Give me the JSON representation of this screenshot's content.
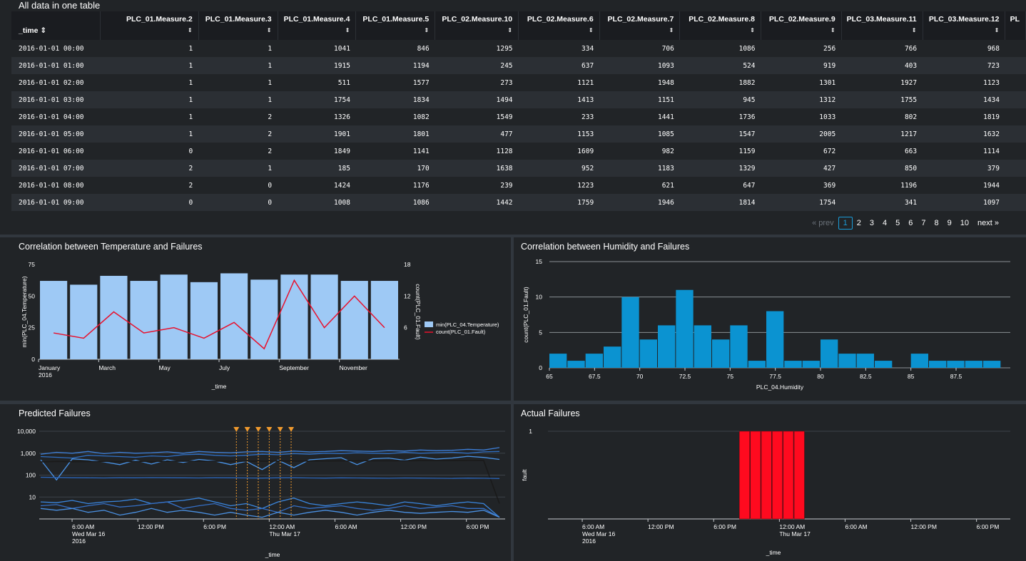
{
  "table": {
    "title": "All data in one table",
    "time_header": "_time",
    "sort_glyph": "⇕",
    "columns": [
      "PLC_01.Measure.2",
      "PLC_01.Measure.3",
      "PLC_01.Measure.4",
      "PLC_01.Measure.5",
      "PLC_02.Measure.10",
      "PLC_02.Measure.6",
      "PLC_02.Measure.7",
      "PLC_02.Measure.8",
      "PLC_02.Measure.9",
      "PLC_03.Measure.11",
      "PLC_03.Measure.12",
      "PL"
    ],
    "rows": [
      {
        "time": "2016-01-01 00:00",
        "values": [
          "1",
          "1",
          "1041",
          "846",
          "1295",
          "334",
          "706",
          "1086",
          "256",
          "766",
          "968"
        ]
      },
      {
        "time": "2016-01-01 01:00",
        "values": [
          "1",
          "1",
          "1915",
          "1194",
          "245",
          "637",
          "1093",
          "524",
          "919",
          "403",
          "723"
        ]
      },
      {
        "time": "2016-01-01 02:00",
        "values": [
          "1",
          "1",
          "511",
          "1577",
          "273",
          "1121",
          "1948",
          "1882",
          "1301",
          "1927",
          "1123"
        ]
      },
      {
        "time": "2016-01-01 03:00",
        "values": [
          "1",
          "1",
          "1754",
          "1834",
          "1494",
          "1413",
          "1151",
          "945",
          "1312",
          "1755",
          "1434"
        ]
      },
      {
        "time": "2016-01-01 04:00",
        "values": [
          "1",
          "2",
          "1326",
          "1082",
          "1549",
          "233",
          "1441",
          "1736",
          "1033",
          "802",
          "1819"
        ]
      },
      {
        "time": "2016-01-01 05:00",
        "values": [
          "1",
          "2",
          "1901",
          "1801",
          "477",
          "1153",
          "1085",
          "1547",
          "2005",
          "1217",
          "1632"
        ]
      },
      {
        "time": "2016-01-01 06:00",
        "values": [
          "0",
          "2",
          "1849",
          "1141",
          "1128",
          "1609",
          "982",
          "1159",
          "672",
          "663",
          "1114"
        ]
      },
      {
        "time": "2016-01-01 07:00",
        "values": [
          "2",
          "1",
          "185",
          "170",
          "1638",
          "952",
          "1183",
          "1329",
          "427",
          "850",
          "379"
        ]
      },
      {
        "time": "2016-01-01 08:00",
        "values": [
          "2",
          "0",
          "1424",
          "1176",
          "239",
          "1223",
          "621",
          "647",
          "369",
          "1196",
          "1944"
        ]
      },
      {
        "time": "2016-01-01 09:00",
        "values": [
          "0",
          "0",
          "1008",
          "1086",
          "1442",
          "1759",
          "1946",
          "1814",
          "1754",
          "341",
          "1097"
        ]
      }
    ]
  },
  "pagination": {
    "prev": "« prev",
    "pages": [
      "1",
      "2",
      "3",
      "4",
      "5",
      "6",
      "7",
      "8",
      "9",
      "10"
    ],
    "current": "1",
    "next": "next »"
  },
  "colors": {
    "bar_blue": "#9ec9f5",
    "fault_red": "#e8112d",
    "hist_blue": "#0b93d1",
    "failure_red": "#ff0a1f",
    "marker_orange": "#f09a2e",
    "series_blue": "#4a90e2"
  },
  "chart_data": [
    {
      "type": "bar",
      "title": "Correlation between Temperature and Failures",
      "categories": [
        "January 2016",
        "February",
        "March",
        "April",
        "May",
        "June",
        "July",
        "August",
        "September",
        "October",
        "November",
        "December"
      ],
      "x_tick_labels": [
        "January",
        "2016",
        "March",
        "May",
        "July",
        "September",
        "November"
      ],
      "xlabel": "_time",
      "ylabel": "min(PLC_04.Temperature)",
      "ylabel_right": "count(PLC_01.Fault)",
      "ylim": [
        0,
        75
      ],
      "yticks": [
        "0",
        "25",
        "50",
        "75"
      ],
      "ylim_right": [
        0,
        18
      ],
      "yticks_right": [
        "6",
        "12",
        "18"
      ],
      "legend": [
        "min(PLC_04.Temperature)",
        "count(PLC_01.Fault)"
      ],
      "legend_placement": "right",
      "series": [
        {
          "name": "min(PLC_04.Temperature)",
          "type": "bar",
          "values": [
            62,
            59,
            66,
            62,
            67,
            61,
            68,
            63,
            67,
            67,
            62,
            62
          ]
        },
        {
          "name": "count(PLC_01.Fault)",
          "type": "line",
          "values": [
            5,
            4,
            9,
            5,
            6,
            4,
            7,
            2,
            15,
            6,
            12,
            6
          ]
        }
      ]
    },
    {
      "type": "bar",
      "title": "Correlation between Humidity and Failures",
      "xlabel": "PLC_04.Humidity",
      "ylabel": "count(PLC_01.Fault)",
      "xlim": [
        65,
        90.5
      ],
      "xticks": [
        "65",
        "67.5",
        "70",
        "72.5",
        "75",
        "77.5",
        "80",
        "82.5",
        "85",
        "87.5"
      ],
      "ylim": [
        0,
        15
      ],
      "yticks": [
        "0",
        "5",
        "10",
        "15"
      ],
      "bin_width": 1,
      "bins_start": [
        65,
        66,
        67,
        68,
        69,
        70,
        71,
        72,
        73,
        74,
        75,
        76,
        77,
        78,
        79,
        80,
        81,
        82,
        83,
        84,
        85,
        86,
        87,
        88,
        89
      ],
      "values": [
        2,
        1,
        2,
        3,
        10,
        4,
        6,
        11,
        6,
        4,
        6,
        1,
        8,
        1,
        1,
        4,
        2,
        2,
        1,
        0,
        2,
        1,
        1,
        1,
        1
      ]
    },
    {
      "type": "line",
      "title": "Predicted Failures",
      "xlabel": "_time",
      "yscale": "log",
      "yticks": [
        "10",
        "100",
        "1,000",
        "10,000"
      ],
      "x_tick_labels": [
        "6:00 AM",
        "Wed Mar 16",
        "2016",
        "12:00 PM",
        "6:00 PM",
        "12:00 AM",
        "Thu Mar 17",
        "6:00 AM",
        "12:00 PM",
        "6:00 PM"
      ],
      "predicted_failure_markers": [
        "2016-03-16 21:00",
        "2016-03-16 22:00",
        "2016-03-16 23:00",
        "2016-03-17 00:00",
        "2016-03-17 01:00",
        "2016-03-17 02:00"
      ],
      "series": [
        {
          "values": [
            900,
            1100,
            1000,
            1200,
            950,
            1100,
            1000,
            1050,
            1150,
            1000,
            1200,
            1100,
            1050,
            1150,
            1200,
            1100,
            1250,
            1150,
            1200,
            1300,
            1250,
            1200,
            1300,
            1250,
            1400,
            1300,
            1350,
            1500,
            1400,
            1800
          ]
        },
        {
          "values": [
            700,
            650,
            600,
            800,
            750,
            700,
            650,
            750,
            700,
            850,
            900,
            800,
            750,
            800,
            900,
            850,
            950,
            900,
            1000,
            950,
            1050,
            1000,
            950,
            1100,
            1000,
            1050,
            1100,
            1000,
            1150,
            1200
          ]
        },
        {
          "values": [
            500,
            60,
            550,
            500,
            400,
            300,
            480,
            320,
            500,
            380,
            520,
            440,
            300,
            420,
            180,
            480,
            220,
            500,
            560,
            620,
            300,
            560,
            600,
            480,
            660,
            540,
            600,
            720,
            640,
            520
          ]
        },
        {
          "values": [
            400,
            420,
            410,
            415,
            420,
            418,
            422,
            420,
            425,
            428,
            430,
            428,
            432,
            430,
            435,
            438,
            440,
            438,
            442,
            445,
            448,
            450,
            452,
            455,
            458,
            460,
            462,
            465,
            470,
            5
          ]
        },
        {
          "values": [
            80,
            78,
            76,
            75,
            74,
            76,
            75,
            77,
            76,
            75,
            74,
            76,
            75,
            74,
            73,
            75,
            76,
            74,
            73,
            75,
            74,
            73,
            72,
            74,
            73,
            72,
            71,
            73,
            72,
            70
          ]
        },
        {
          "values": [
            6,
            5.5,
            7,
            5,
            6,
            6.5,
            8,
            5,
            6,
            7,
            9,
            6,
            4,
            5,
            3,
            6,
            9,
            5,
            4,
            5,
            6,
            5,
            4,
            6,
            5,
            4,
            5,
            6,
            5,
            1.2
          ]
        },
        {
          "values": [
            4,
            4.5,
            3,
            4,
            5,
            3.5,
            4,
            5,
            6,
            3,
            4,
            5,
            3,
            2.5,
            3,
            2,
            4,
            3,
            3.5,
            4,
            3,
            2.5,
            3,
            4,
            3,
            3.5,
            4,
            3,
            3,
            1.2
          ]
        },
        {
          "values": [
            3,
            2.5,
            3,
            2,
            2.5,
            1.5,
            2,
            3,
            2,
            2.5,
            2,
            1.5,
            2,
            1.5,
            1.2,
            2,
            1.5,
            2,
            2.5,
            2,
            1.5,
            2,
            2.5,
            2,
            1.8,
            2,
            2.2,
            2,
            2.5,
            1.2
          ]
        }
      ]
    },
    {
      "type": "bar",
      "title": "Actual Failures",
      "xlabel": "_time",
      "ylabel": "fault",
      "yticks": [
        "1"
      ],
      "ylim": [
        0,
        1
      ],
      "x_tick_labels": [
        "6:00 AM",
        "Wed Mar 16",
        "2016",
        "12:00 PM",
        "6:00 PM",
        "12:00 AM",
        "Thu Mar 17",
        "6:00 AM",
        "12:00 PM",
        "6:00 PM"
      ],
      "categories": [
        "2016-03-16 21:00",
        "2016-03-16 22:00",
        "2016-03-16 23:00",
        "2016-03-17 00:00",
        "2016-03-17 01:00",
        "2016-03-17 02:00"
      ],
      "values": [
        1,
        1,
        1,
        1,
        1,
        1
      ]
    }
  ]
}
